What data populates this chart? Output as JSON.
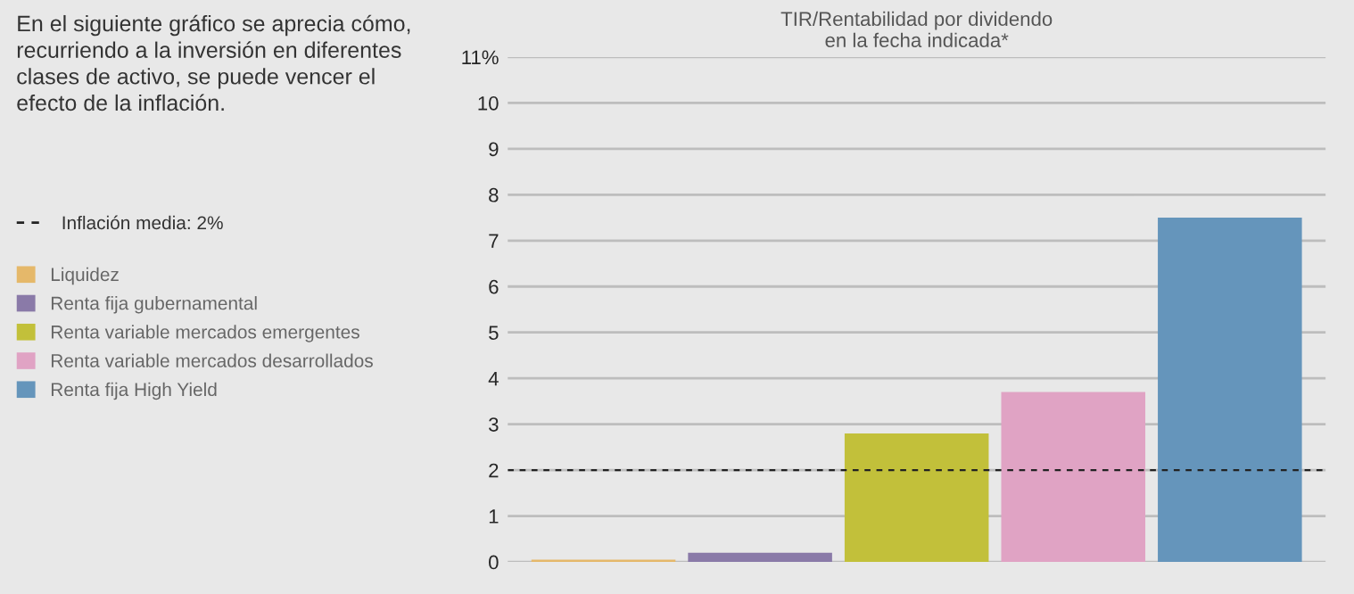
{
  "chart_data": {
    "type": "bar",
    "title": "TIR/Rentabilidad por dividendo\nen la fecha indicada*",
    "annotations": [
      "En el siguiente gráfico se aprecia cómo,\nrecurriendo a la inversión en diferentes\nclases de activo, se puede vencer el\nefecto de la inflación."
    ],
    "categories": [
      null
    ],
    "series": [
      {
        "name": "Liquidez",
        "color": "#e5b86a",
        "values": [
          0.05
        ]
      },
      {
        "name": "Renta fija gubernamental",
        "color": "#8a7aa8",
        "values": [
          0.2
        ]
      },
      {
        "name": "Renta variable mercados emergentes",
        "color": "#c2c03a",
        "values": [
          2.8
        ]
      },
      {
        "name": "Renta variable mercados desarrollados",
        "color": "#e0a3c4",
        "values": [
          3.7
        ]
      },
      {
        "name": "Renta fija High Yield",
        "color": "#6595bb",
        "values": [
          7.5
        ]
      }
    ],
    "ylim": [
      0,
      11
    ],
    "yticks": [
      0,
      1,
      2,
      3,
      4,
      5,
      6,
      7,
      8,
      9,
      10,
      {
        "value": 11,
        "label": "11%"
      }
    ],
    "tick_labels": "y",
    "grid": "y",
    "legend": "left",
    "ref_lines": [
      {
        "axis": "y",
        "value": 2,
        "label": "Inflación media: 2%",
        "color": "#222222",
        "line_style": "dashed"
      }
    ]
  }
}
